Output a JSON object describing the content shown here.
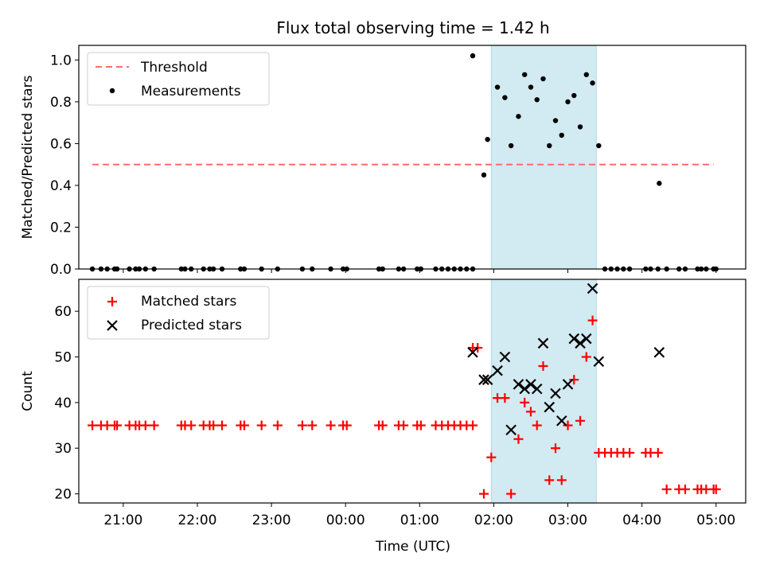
{
  "title": "Flux total observing time = 1.42 h",
  "colors": {
    "threshold": "#ff6b6b",
    "measurement": "#000000",
    "matched": "#ff0000",
    "predicted": "#000000",
    "span": "#add8e6"
  },
  "chart_data": [
    {
      "type": "scatter",
      "ylabel": "Matched/Predicted stars",
      "xlim": [
        20.4,
        5.4
      ],
      "ylim": [
        0,
        1.07
      ],
      "yticks": [
        0.0,
        0.2,
        0.4,
        0.6,
        0.8,
        1.0
      ],
      "ytick_labels": [
        "0.0",
        "0.2",
        "0.4",
        "0.6",
        "0.8",
        "1.0"
      ],
      "legend": {
        "placement": "upper-left",
        "entries": [
          "Threshold",
          "Measurements"
        ]
      },
      "highlight_span": {
        "from": "01:58",
        "to": "03:23"
      },
      "threshold": {
        "name": "Threshold",
        "y": 0.5,
        "x_from": "20:35",
        "x_to": "04:58"
      },
      "series": [
        {
          "name": "Measurements",
          "points": [
            [
              "20:35",
              0.0
            ],
            [
              "20:42",
              0.0
            ],
            [
              "20:47",
              0.0
            ],
            [
              "20:53",
              0.0
            ],
            [
              "20:55",
              0.0
            ],
            [
              "21:05",
              0.0
            ],
            [
              "21:10",
              0.0
            ],
            [
              "21:13",
              0.0
            ],
            [
              "21:18",
              0.0
            ],
            [
              "21:25",
              0.0
            ],
            [
              "21:47",
              0.0
            ],
            [
              "21:50",
              0.0
            ],
            [
              "21:55",
              0.0
            ],
            [
              "22:05",
              0.0
            ],
            [
              "22:10",
              0.0
            ],
            [
              "22:13",
              0.0
            ],
            [
              "22:20",
              0.0
            ],
            [
              "22:35",
              0.0
            ],
            [
              "22:38",
              0.0
            ],
            [
              "22:52",
              0.0
            ],
            [
              "23:05",
              0.0
            ],
            [
              "23:25",
              0.0
            ],
            [
              "23:33",
              0.0
            ],
            [
              "23:48",
              0.0
            ],
            [
              "23:58",
              0.0
            ],
            [
              "24:01",
              0.0
            ],
            [
              "24:27",
              0.0
            ],
            [
              "24:30",
              0.0
            ],
            [
              "24:43",
              0.0
            ],
            [
              "24:47",
              0.0
            ],
            [
              "24:58",
              0.0
            ],
            [
              "25:01",
              0.0
            ],
            [
              "25:13",
              0.0
            ],
            [
              "25:18",
              0.0
            ],
            [
              "25:23",
              0.0
            ],
            [
              "25:28",
              0.0
            ],
            [
              "25:33",
              0.0
            ],
            [
              "25:38",
              0.0
            ],
            [
              "25:43",
              0.0
            ],
            [
              "25:43",
              1.02
            ],
            [
              "25:52",
              0.45
            ],
            [
              "25:55",
              0.62
            ],
            [
              "26:03",
              0.87
            ],
            [
              "26:09",
              0.82
            ],
            [
              "26:14",
              0.59
            ],
            [
              "26:20",
              0.73
            ],
            [
              "26:25",
              0.93
            ],
            [
              "26:30",
              0.87
            ],
            [
              "26:35",
              0.81
            ],
            [
              "26:40",
              0.91
            ],
            [
              "26:45",
              0.59
            ],
            [
              "26:50",
              0.71
            ],
            [
              "26:55",
              0.64
            ],
            [
              "27:00",
              0.8
            ],
            [
              "27:05",
              0.83
            ],
            [
              "27:10",
              0.68
            ],
            [
              "27:15",
              0.93
            ],
            [
              "27:20",
              0.89
            ],
            [
              "27:25",
              0.59
            ],
            [
              "27:30",
              0.0
            ],
            [
              "27:35",
              0.0
            ],
            [
              "27:40",
              0.0
            ],
            [
              "27:45",
              0.0
            ],
            [
              "27:50",
              0.0
            ],
            [
              "28:03",
              0.0
            ],
            [
              "28:07",
              0.0
            ],
            [
              "28:13",
              0.0
            ],
            [
              "28:14",
              0.41
            ],
            [
              "28:20",
              0.0
            ],
            [
              "28:30",
              0.0
            ],
            [
              "28:35",
              0.0
            ],
            [
              "28:45",
              0.0
            ],
            [
              "28:48",
              0.0
            ],
            [
              "28:52",
              0.0
            ],
            [
              "28:58",
              0.0
            ],
            [
              "29:00",
              0.0
            ]
          ]
        }
      ]
    },
    {
      "type": "scatter",
      "ylabel": "Count",
      "xlabel": "Time (UTC)",
      "xlim": [
        20.4,
        5.4
      ],
      "ylim": [
        18,
        67
      ],
      "yticks": [
        20,
        30,
        40,
        50,
        60
      ],
      "ytick_labels": [
        "20",
        "30",
        "40",
        "50",
        "60"
      ],
      "xticks": [
        "21:00",
        "22:00",
        "23:00",
        "00:00",
        "01:00",
        "02:00",
        "03:00",
        "04:00",
        "05:00"
      ],
      "legend": {
        "placement": "upper-left",
        "entries": [
          "Matched stars",
          "Predicted stars"
        ]
      },
      "highlight_span": {
        "from": "01:58",
        "to": "03:23"
      },
      "series": [
        {
          "name": "Matched stars",
          "points": [
            [
              "20:35",
              35
            ],
            [
              "20:42",
              35
            ],
            [
              "20:47",
              35
            ],
            [
              "20:53",
              35
            ],
            [
              "20:55",
              35
            ],
            [
              "21:05",
              35
            ],
            [
              "21:10",
              35
            ],
            [
              "21:13",
              35
            ],
            [
              "21:18",
              35
            ],
            [
              "21:25",
              35
            ],
            [
              "21:47",
              35
            ],
            [
              "21:50",
              35
            ],
            [
              "21:55",
              35
            ],
            [
              "22:05",
              35
            ],
            [
              "22:10",
              35
            ],
            [
              "22:13",
              35
            ],
            [
              "22:20",
              35
            ],
            [
              "22:35",
              35
            ],
            [
              "22:38",
              35
            ],
            [
              "22:52",
              35
            ],
            [
              "23:05",
              35
            ],
            [
              "23:25",
              35
            ],
            [
              "23:33",
              35
            ],
            [
              "23:48",
              35
            ],
            [
              "23:58",
              35
            ],
            [
              "24:01",
              35
            ],
            [
              "24:27",
              35
            ],
            [
              "24:30",
              35
            ],
            [
              "24:43",
              35
            ],
            [
              "24:47",
              35
            ],
            [
              "24:58",
              35
            ],
            [
              "25:01",
              35
            ],
            [
              "25:13",
              35
            ],
            [
              "25:18",
              35
            ],
            [
              "25:23",
              35
            ],
            [
              "25:28",
              35
            ],
            [
              "25:33",
              35
            ],
            [
              "25:38",
              35
            ],
            [
              "25:43",
              35
            ],
            [
              "25:43",
              52
            ],
            [
              "25:47",
              52
            ],
            [
              "25:52",
              20
            ],
            [
              "25:58",
              28
            ],
            [
              "26:03",
              41
            ],
            [
              "26:09",
              41
            ],
            [
              "26:14",
              20
            ],
            [
              "26:20",
              32
            ],
            [
              "26:25",
              40
            ],
            [
              "26:30",
              38
            ],
            [
              "26:35",
              35
            ],
            [
              "26:40",
              48
            ],
            [
              "26:45",
              23
            ],
            [
              "26:50",
              30
            ],
            [
              "26:55",
              23
            ],
            [
              "27:00",
              35
            ],
            [
              "27:05",
              45
            ],
            [
              "27:10",
              36
            ],
            [
              "27:15",
              50
            ],
            [
              "27:20",
              58
            ],
            [
              "27:25",
              29
            ],
            [
              "27:30",
              29
            ],
            [
              "27:35",
              29
            ],
            [
              "27:40",
              29
            ],
            [
              "27:45",
              29
            ],
            [
              "27:50",
              29
            ],
            [
              "28:03",
              29
            ],
            [
              "28:07",
              29
            ],
            [
              "28:13",
              29
            ],
            [
              "28:20",
              21
            ],
            [
              "28:30",
              21
            ],
            [
              "28:35",
              21
            ],
            [
              "28:45",
              21
            ],
            [
              "28:48",
              21
            ],
            [
              "28:52",
              21
            ],
            [
              "28:58",
              21
            ],
            [
              "29:00",
              21
            ]
          ]
        },
        {
          "name": "Predicted stars",
          "points": [
            [
              "25:43",
              51
            ],
            [
              "25:52",
              45
            ],
            [
              "25:55",
              45
            ],
            [
              "26:03",
              47
            ],
            [
              "26:09",
              50
            ],
            [
              "26:14",
              34
            ],
            [
              "26:20",
              44
            ],
            [
              "26:25",
              43
            ],
            [
              "26:30",
              44
            ],
            [
              "26:35",
              43
            ],
            [
              "26:40",
              53
            ],
            [
              "26:45",
              39
            ],
            [
              "26:50",
              42
            ],
            [
              "26:55",
              36
            ],
            [
              "27:00",
              44
            ],
            [
              "27:05",
              54
            ],
            [
              "27:10",
              53
            ],
            [
              "27:15",
              54
            ],
            [
              "27:20",
              65
            ],
            [
              "27:25",
              49
            ],
            [
              "28:14",
              51
            ]
          ]
        }
      ]
    }
  ]
}
